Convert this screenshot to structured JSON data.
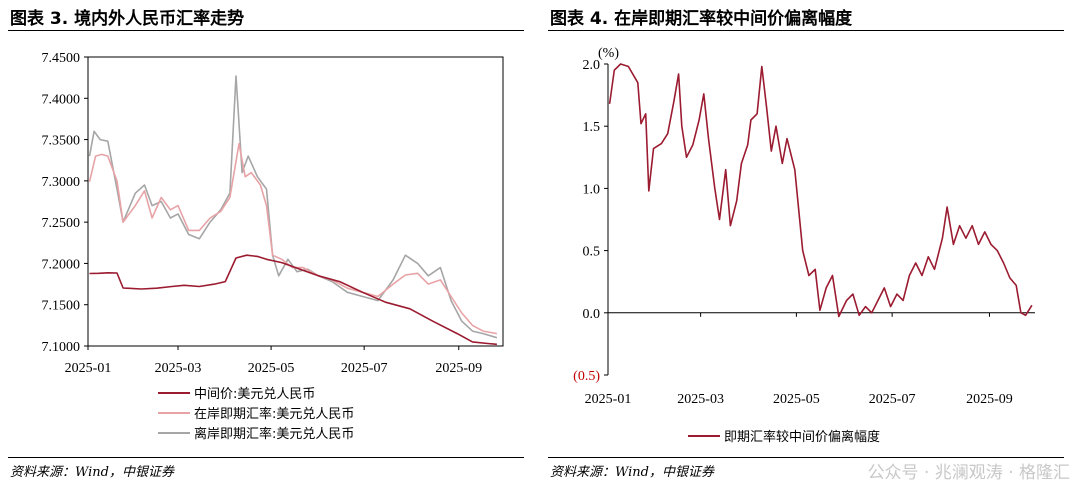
{
  "left": {
    "title": "图表 3. 境内外人民币汇率走势",
    "source": "资料来源：Wind，中银证券",
    "chart_data": {
      "type": "line",
      "title": "图表 3. 境内外人民币汇率走势",
      "ylim": [
        7.1,
        7.45
      ],
      "yticks": [
        "7.4500",
        "7.4000",
        "7.3500",
        "7.3000",
        "7.2500",
        "7.2000",
        "7.1500",
        "7.1000"
      ],
      "ytick_values": [
        7.45,
        7.4,
        7.35,
        7.3,
        7.25,
        7.2,
        7.15,
        7.1
      ],
      "xlim": [
        "2025-01-01",
        "2025-09-30"
      ],
      "xticks": [
        "2025-01",
        "2025-03",
        "2025-05",
        "2025-07",
        "2025-09"
      ],
      "xtick_dates": [
        "2025-01-01",
        "2025-03-01",
        "2025-05-01",
        "2025-07-01",
        "2025-09-01"
      ],
      "grid": false,
      "legend": "bottom",
      "series": [
        {
          "name": "中间价:美元兑人民币",
          "color": "#9B1B30",
          "points": [
            [
              "2025-01-02",
              7.1878
            ],
            [
              "2025-01-08",
              7.188
            ],
            [
              "2025-01-14",
              7.1887
            ],
            [
              "2025-01-20",
              7.1884
            ],
            [
              "2025-01-24",
              7.1703
            ],
            [
              "2025-02-05",
              7.169
            ],
            [
              "2025-02-15",
              7.17
            ],
            [
              "2025-02-25",
              7.172
            ],
            [
              "2025-03-05",
              7.1735
            ],
            [
              "2025-03-15",
              7.172
            ],
            [
              "2025-03-25",
              7.175
            ],
            [
              "2025-04-01",
              7.178
            ],
            [
              "2025-04-08",
              7.2066
            ],
            [
              "2025-04-15",
              7.21
            ],
            [
              "2025-04-22",
              7.2085
            ],
            [
              "2025-04-28",
              7.205
            ],
            [
              "2025-05-08",
              7.201
            ],
            [
              "2025-05-20",
              7.193
            ],
            [
              "2025-06-01",
              7.185
            ],
            [
              "2025-06-15",
              7.178
            ],
            [
              "2025-06-30",
              7.165
            ],
            [
              "2025-07-15",
              7.153
            ],
            [
              "2025-07-31",
              7.145
            ],
            [
              "2025-08-15",
              7.13
            ],
            [
              "2025-08-31",
              7.115
            ],
            [
              "2025-09-10",
              7.105
            ],
            [
              "2025-09-20",
              7.103
            ],
            [
              "2025-09-26",
              7.102
            ]
          ]
        },
        {
          "name": "在岸即期汇率:美元兑人民币",
          "color": "#E8A3A6",
          "points": [
            [
              "2025-01-02",
              7.299
            ],
            [
              "2025-01-06",
              7.33
            ],
            [
              "2025-01-10",
              7.332
            ],
            [
              "2025-01-14",
              7.33
            ],
            [
              "2025-01-20",
              7.3
            ],
            [
              "2025-01-24",
              7.25
            ],
            [
              "2025-02-01",
              7.27
            ],
            [
              "2025-02-07",
              7.288
            ],
            [
              "2025-02-12",
              7.255
            ],
            [
              "2025-02-18",
              7.28
            ],
            [
              "2025-02-24",
              7.265
            ],
            [
              "2025-03-01",
              7.27
            ],
            [
              "2025-03-08",
              7.24
            ],
            [
              "2025-03-15",
              7.24
            ],
            [
              "2025-03-22",
              7.255
            ],
            [
              "2025-03-29",
              7.263
            ],
            [
              "2025-04-04",
              7.28
            ],
            [
              "2025-04-10",
              7.345
            ],
            [
              "2025-04-14",
              7.305
            ],
            [
              "2025-04-18",
              7.31
            ],
            [
              "2025-04-24",
              7.295
            ],
            [
              "2025-04-28",
              7.27
            ],
            [
              "2025-05-02",
              7.21
            ],
            [
              "2025-05-08",
              7.205
            ],
            [
              "2025-05-15",
              7.195
            ],
            [
              "2025-05-22",
              7.195
            ],
            [
              "2025-06-01",
              7.185
            ],
            [
              "2025-06-10",
              7.18
            ],
            [
              "2025-06-20",
              7.17
            ],
            [
              "2025-06-30",
              7.165
            ],
            [
              "2025-07-10",
              7.16
            ],
            [
              "2025-07-20",
              7.175
            ],
            [
              "2025-07-28",
              7.186
            ],
            [
              "2025-08-05",
              7.188
            ],
            [
              "2025-08-12",
              7.175
            ],
            [
              "2025-08-20",
              7.18
            ],
            [
              "2025-08-27",
              7.16
            ],
            [
              "2025-09-03",
              7.14
            ],
            [
              "2025-09-10",
              7.125
            ],
            [
              "2025-09-17",
              7.118
            ],
            [
              "2025-09-26",
              7.115
            ]
          ]
        },
        {
          "name": "离岸即期汇率:美元兑人民币",
          "color": "#A6A6A6",
          "points": [
            [
              "2025-01-02",
              7.33
            ],
            [
              "2025-01-05",
              7.36
            ],
            [
              "2025-01-09",
              7.35
            ],
            [
              "2025-01-14",
              7.348
            ],
            [
              "2025-01-20",
              7.29
            ],
            [
              "2025-01-24",
              7.25
            ],
            [
              "2025-02-01",
              7.285
            ],
            [
              "2025-02-07",
              7.295
            ],
            [
              "2025-02-12",
              7.27
            ],
            [
              "2025-02-18",
              7.275
            ],
            [
              "2025-02-24",
              7.255
            ],
            [
              "2025-03-01",
              7.26
            ],
            [
              "2025-03-08",
              7.235
            ],
            [
              "2025-03-15",
              7.23
            ],
            [
              "2025-03-22",
              7.25
            ],
            [
              "2025-03-29",
              7.265
            ],
            [
              "2025-04-04",
              7.285
            ],
            [
              "2025-04-08",
              7.427
            ],
            [
              "2025-04-12",
              7.31
            ],
            [
              "2025-04-16",
              7.33
            ],
            [
              "2025-04-22",
              7.305
            ],
            [
              "2025-04-28",
              7.29
            ],
            [
              "2025-05-02",
              7.21
            ],
            [
              "2025-05-06",
              7.185
            ],
            [
              "2025-05-12",
              7.205
            ],
            [
              "2025-05-18",
              7.19
            ],
            [
              "2025-05-25",
              7.193
            ],
            [
              "2025-06-01",
              7.185
            ],
            [
              "2025-06-10",
              7.178
            ],
            [
              "2025-06-20",
              7.165
            ],
            [
              "2025-06-30",
              7.16
            ],
            [
              "2025-07-10",
              7.155
            ],
            [
              "2025-07-20",
              7.18
            ],
            [
              "2025-07-28",
              7.21
            ],
            [
              "2025-08-05",
              7.2
            ],
            [
              "2025-08-12",
              7.185
            ],
            [
              "2025-08-20",
              7.195
            ],
            [
              "2025-08-27",
              7.155
            ],
            [
              "2025-09-03",
              7.13
            ],
            [
              "2025-09-10",
              7.118
            ],
            [
              "2025-09-17",
              7.115
            ],
            [
              "2025-09-26",
              7.11
            ]
          ]
        }
      ]
    }
  },
  "right": {
    "title": "图表 4. 在岸即期汇率较中间价偏离幅度",
    "source": "资料来源：Wind，中银证券",
    "unit_label": "(%)",
    "chart_data": {
      "type": "line",
      "title": "图表 4. 在岸即期汇率较中间价偏离幅度",
      "ylim": [
        -0.5,
        2.0
      ],
      "yticks": [
        "2.0",
        "1.5",
        "1.0",
        "0.5",
        "0.0",
        "(0.5)"
      ],
      "ytick_values": [
        2.0,
        1.5,
        1.0,
        0.5,
        0.0,
        -0.5
      ],
      "negative_tick_color": "#C00000",
      "xlim": [
        "2025-01-01",
        "2025-09-30"
      ],
      "xticks": [
        "2025-01",
        "2025-03",
        "2025-05",
        "2025-07",
        "2025-09"
      ],
      "xtick_dates": [
        "2025-01-01",
        "2025-03-01",
        "2025-05-01",
        "2025-07-01",
        "2025-09-01"
      ],
      "grid": false,
      "legend": "bottom",
      "series": [
        {
          "name": "即期汇率较中间价偏离幅度",
          "color": "#9B1B30",
          "points": [
            [
              "2025-01-02",
              1.68
            ],
            [
              "2025-01-05",
              1.95
            ],
            [
              "2025-01-09",
              2.0
            ],
            [
              "2025-01-14",
              1.98
            ],
            [
              "2025-01-20",
              1.85
            ],
            [
              "2025-01-22",
              1.52
            ],
            [
              "2025-01-25",
              1.6
            ],
            [
              "2025-01-27",
              0.98
            ],
            [
              "2025-01-30",
              1.32
            ],
            [
              "2025-02-04",
              1.36
            ],
            [
              "2025-02-08",
              1.44
            ],
            [
              "2025-02-12",
              1.7
            ],
            [
              "2025-02-15",
              1.92
            ],
            [
              "2025-02-17",
              1.5
            ],
            [
              "2025-02-20",
              1.25
            ],
            [
              "2025-02-24",
              1.35
            ],
            [
              "2025-02-28",
              1.55
            ],
            [
              "2025-03-03",
              1.76
            ],
            [
              "2025-03-06",
              1.4
            ],
            [
              "2025-03-10",
              1.0
            ],
            [
              "2025-03-13",
              0.75
            ],
            [
              "2025-03-17",
              1.15
            ],
            [
              "2025-03-20",
              0.7
            ],
            [
              "2025-03-24",
              0.9
            ],
            [
              "2025-03-27",
              1.2
            ],
            [
              "2025-03-31",
              1.35
            ],
            [
              "2025-04-02",
              1.55
            ],
            [
              "2025-04-06",
              1.6
            ],
            [
              "2025-04-09",
              1.98
            ],
            [
              "2025-04-12",
              1.65
            ],
            [
              "2025-04-15",
              1.3
            ],
            [
              "2025-04-18",
              1.5
            ],
            [
              "2025-04-22",
              1.2
            ],
            [
              "2025-04-25",
              1.4
            ],
            [
              "2025-04-30",
              1.15
            ],
            [
              "2025-05-05",
              0.5
            ],
            [
              "2025-05-09",
              0.3
            ],
            [
              "2025-05-13",
              0.35
            ],
            [
              "2025-05-16",
              0.02
            ],
            [
              "2025-05-20",
              0.2
            ],
            [
              "2025-05-24",
              0.3
            ],
            [
              "2025-05-28",
              -0.03
            ],
            [
              "2025-06-02",
              0.1
            ],
            [
              "2025-06-06",
              0.15
            ],
            [
              "2025-06-10",
              -0.02
            ],
            [
              "2025-06-14",
              0.05
            ],
            [
              "2025-06-18",
              0.0
            ],
            [
              "2025-06-22",
              0.1
            ],
            [
              "2025-06-26",
              0.2
            ],
            [
              "2025-06-30",
              0.05
            ],
            [
              "2025-07-04",
              0.15
            ],
            [
              "2025-07-08",
              0.1
            ],
            [
              "2025-07-12",
              0.3
            ],
            [
              "2025-07-16",
              0.4
            ],
            [
              "2025-07-20",
              0.3
            ],
            [
              "2025-07-24",
              0.45
            ],
            [
              "2025-07-28",
              0.35
            ],
            [
              "2025-08-02",
              0.6
            ],
            [
              "2025-08-05",
              0.85
            ],
            [
              "2025-08-09",
              0.55
            ],
            [
              "2025-08-13",
              0.7
            ],
            [
              "2025-08-17",
              0.6
            ],
            [
              "2025-08-21",
              0.7
            ],
            [
              "2025-08-25",
              0.55
            ],
            [
              "2025-08-29",
              0.65
            ],
            [
              "2025-09-02",
              0.55
            ],
            [
              "2025-09-06",
              0.5
            ],
            [
              "2025-09-10",
              0.4
            ],
            [
              "2025-09-14",
              0.28
            ],
            [
              "2025-09-18",
              0.22
            ],
            [
              "2025-09-21",
              0.0
            ],
            [
              "2025-09-24",
              -0.02
            ],
            [
              "2025-09-28",
              0.06
            ]
          ]
        }
      ]
    }
  },
  "watermark": "公众号 · 兆澜观涛 · 格隆汇"
}
